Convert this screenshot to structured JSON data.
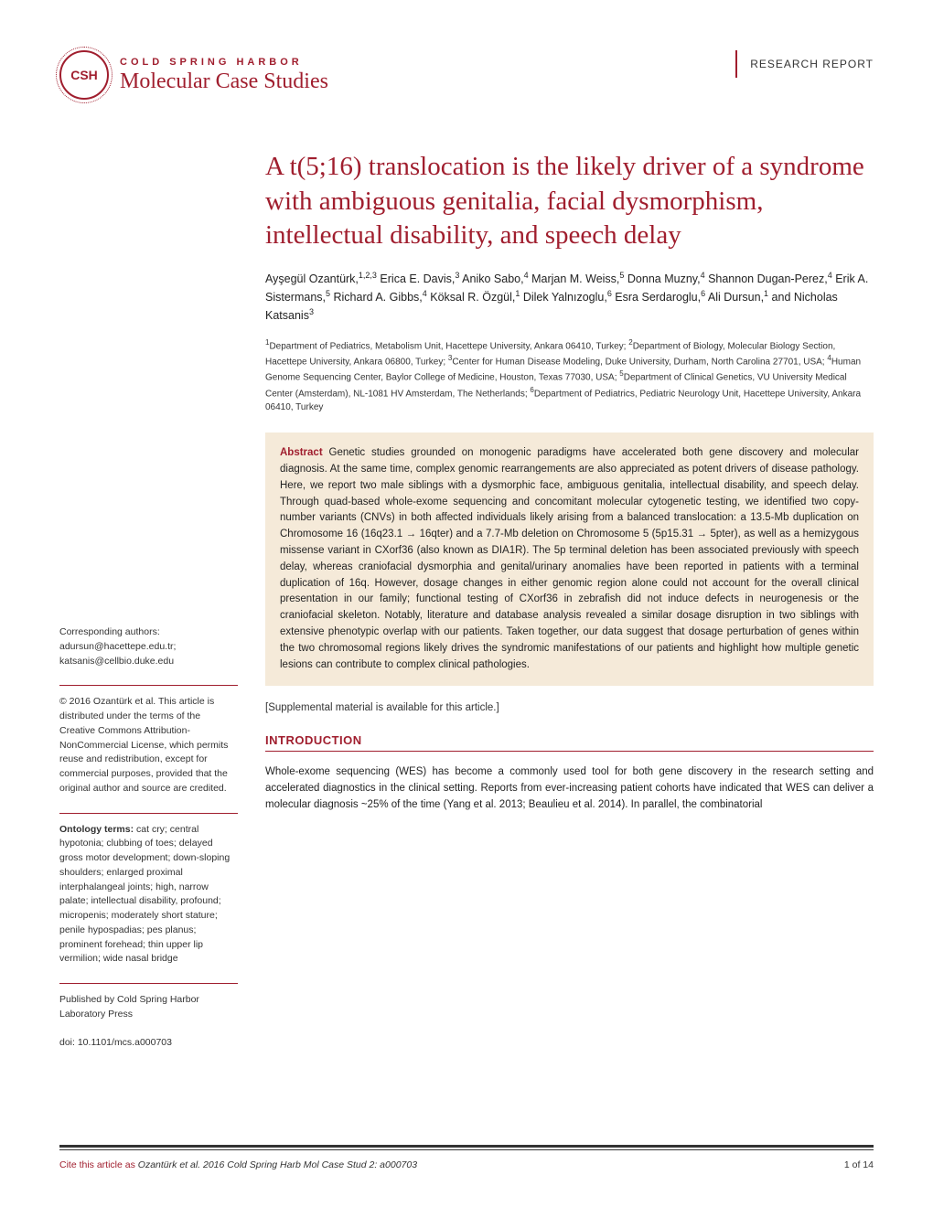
{
  "header": {
    "logo_text": "CSH",
    "publisher": "COLD SPRING HARBOR",
    "journal": "Molecular Case Studies",
    "article_type": "RESEARCH REPORT"
  },
  "title": "A t(5;16) translocation is the likely driver of a syndrome with ambiguous genitalia, facial dysmorphism, intellectual disability, and speech delay",
  "authors_html": "Ayşegül Ozantürk,<sup>1,2,3</sup> Erica E. Davis,<sup>3</sup> Aniko Sabo,<sup>4</sup> Marjan M. Weiss,<sup>5</sup> Donna Muzny,<sup>4</sup> Shannon Dugan-Perez,<sup>4</sup> Erik A. Sistermans,<sup>5</sup> Richard A. Gibbs,<sup>4</sup> Köksal R. Özgül,<sup>1</sup> Dilek Yalnızoglu,<sup>6</sup> Esra Serdaroglu,<sup>6</sup> Ali Dursun,<sup>1</sup> and Nicholas Katsanis<sup>3</sup>",
  "affiliations_html": "<sup>1</sup>Department of Pediatrics, Metabolism Unit, Hacettepe University, Ankara 06410, Turkey; <sup>2</sup>Department of Biology, Molecular Biology Section, Hacettepe University, Ankara 06800, Turkey; <sup>3</sup>Center for Human Disease Modeling, Duke University, Durham, North Carolina 27701, USA; <sup>4</sup>Human Genome Sequencing Center, Baylor College of Medicine, Houston, Texas 77030, USA; <sup>5</sup>Department of Clinical Genetics, VU University Medical Center (Amsterdam), NL-1081 HV Amsterdam, The Netherlands; <sup>6</sup>Department of Pediatrics, Pediatric Neurology Unit, Hacettepe University, Ankara 06410, Turkey",
  "abstract": {
    "label": "Abstract",
    "text": "Genetic studies grounded on monogenic paradigms have accelerated both gene discovery and molecular diagnosis. At the same time, complex genomic rearrangements are also appreciated as potent drivers of disease pathology. Here, we report two male siblings with a dysmorphic face, ambiguous genitalia, intellectual disability, and speech delay. Through quad-based whole-exome sequencing and concomitant molecular cytogenetic testing, we identified two copy-number variants (CNVs) in both affected individuals likely arising from a balanced translocation: a 13.5-Mb duplication on Chromosome 16 (16q23.1 → 16qter) and a 7.7-Mb deletion on Chromosome 5 (5p15.31 → 5pter), as well as a hemizygous missense variant in CXorf36 (also known as DIA1R). The 5p terminal deletion has been associated previously with speech delay, whereas craniofacial dysmorphia and genital/urinary anomalies have been reported in patients with a terminal duplication of 16q. However, dosage changes in either genomic region alone could not account for the overall clinical presentation in our family; functional testing of CXorf36 in zebrafish did not induce defects in neurogenesis or the craniofacial skeleton. Notably, literature and database analysis revealed a similar dosage disruption in two siblings with extensive phenotypic overlap with our patients. Taken together, our data suggest that dosage perturbation of genes within the two chromosomal regions likely drives the syndromic manifestations of our patients and highlight how multiple genetic lesions can contribute to complex clinical pathologies."
  },
  "supplemental": "[Supplemental material is available for this article.]",
  "section": {
    "heading": "INTRODUCTION",
    "body": "Whole-exome sequencing (WES) has become a commonly used tool for both gene discovery in the research setting and accelerated diagnostics in the clinical setting. Reports from ever-increasing patient cohorts have indicated that WES can deliver a molecular diagnosis ~25% of the time (Yang et al. 2013; Beaulieu et al. 2014). In parallel, the combinatorial"
  },
  "sidebar": {
    "corresponding": {
      "label": "Corresponding authors:",
      "emails": "adursun@hacettepe.edu.tr; katsanis@cellbio.duke.edu"
    },
    "copyright": "© 2016 Ozantürk et al. This article is distributed under the terms of the Creative Commons Attribution-NonCommercial License, which permits reuse and redistribution, except for commercial purposes, provided that the original author and source are credited.",
    "ontology": {
      "label": "Ontology terms:",
      "text": "cat cry; central hypotonia; clubbing of toes; delayed gross motor development; down-sloping shoulders; enlarged proximal interphalangeal joints; high, narrow palate; intellectual disability, profound; micropenis; moderately short stature; penile hypospadias; pes planus; prominent forehead; thin upper lip vermilion; wide nasal bridge"
    },
    "published": "Published by Cold Spring Harbor Laboratory Press",
    "doi": "doi: 10.1101/mcs.a000703"
  },
  "footer": {
    "cite_label": "Cite this article as",
    "citation": "Ozantürk et al. 2016 Cold Spring Harb Mol Case Stud 2: a000703",
    "page": "1 of 14"
  },
  "colors": {
    "brand": "#a01e2e",
    "abstract_bg": "#f5ead9",
    "text": "#222222"
  }
}
